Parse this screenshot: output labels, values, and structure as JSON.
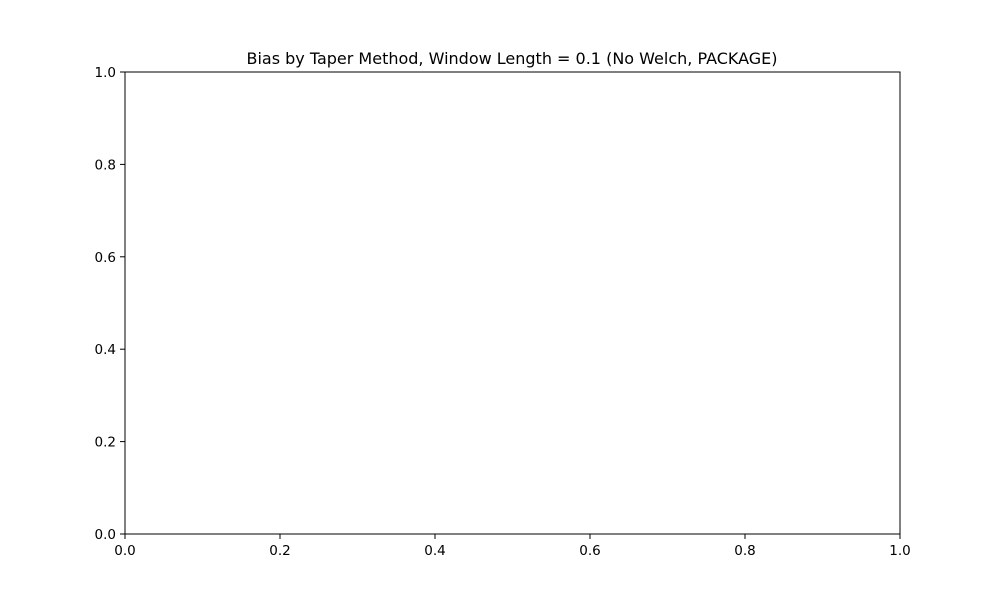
{
  "chart_data": {
    "type": "line",
    "title": "Bias by Taper Method, Window Length = 0.1 (No Welch, PACKAGE)",
    "xlabel": "",
    "ylabel": "",
    "xlim": [
      0.0,
      1.0
    ],
    "ylim": [
      0.0,
      1.0
    ],
    "x_ticks": [
      "0.0",
      "0.2",
      "0.4",
      "0.6",
      "0.8",
      "1.0"
    ],
    "y_ticks": [
      "0.0",
      "0.2",
      "0.4",
      "0.6",
      "0.8",
      "1.0"
    ],
    "grid": false,
    "legend": "none",
    "series": []
  }
}
